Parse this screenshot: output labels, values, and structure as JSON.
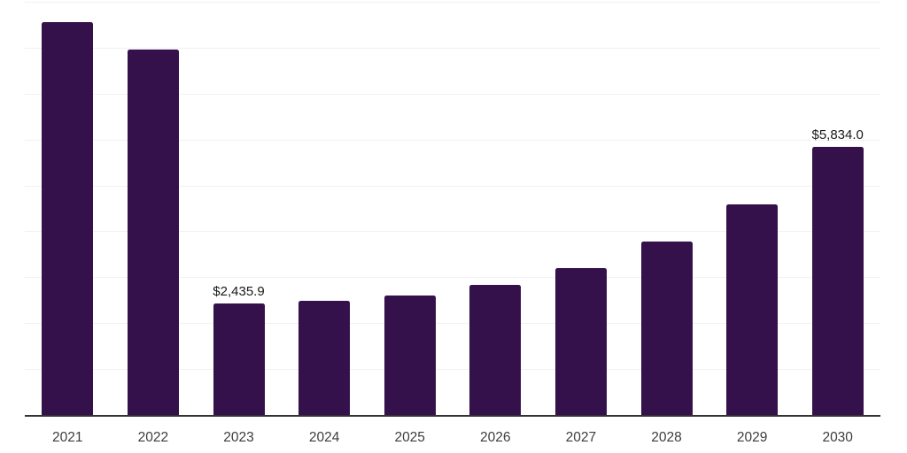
{
  "chart_data": {
    "type": "bar",
    "title": "",
    "xlabel": "",
    "ylabel": "",
    "categories": [
      "2021",
      "2022",
      "2023",
      "2024",
      "2025",
      "2026",
      "2027",
      "2028",
      "2029",
      "2030"
    ],
    "values": [
      8550,
      7950,
      2435.9,
      2490,
      2600,
      2840,
      3190,
      3770,
      4590,
      5834.0
    ],
    "data_labels": [
      {
        "index": 2,
        "text": "$2,435.9"
      },
      {
        "index": 9,
        "text": "$5,834.0"
      }
    ],
    "ylim": [
      0,
      9000
    ],
    "grid_step": 1000,
    "grid": true,
    "legend": false,
    "y_axis_tick_labels_visible": false
  },
  "colors": {
    "bar": "#35114B",
    "gridline": "#f1f1f1",
    "axis_line": "#333333",
    "data_label_text": "#1a1a1a",
    "tick_label_text": "#3d3d3d",
    "background": "#ffffff"
  }
}
